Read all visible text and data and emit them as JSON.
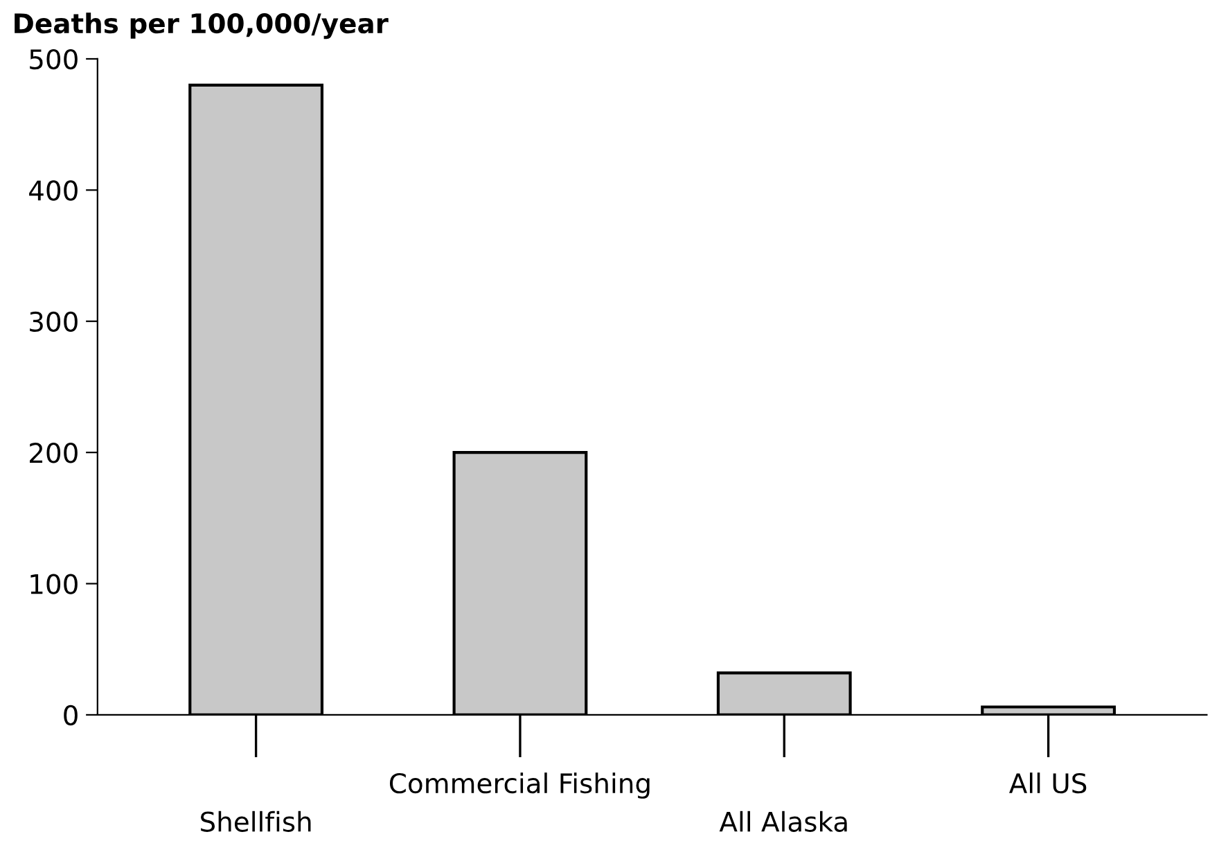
{
  "chart_data": {
    "type": "bar",
    "ylabel": "Deaths per 100,000/year",
    "categories": [
      "Shellfish",
      "Commercial Fishing",
      "All Alaska",
      "All US"
    ],
    "values": [
      480,
      200,
      32,
      6
    ],
    "color": "#c8c8c8",
    "ylim": [
      0,
      500
    ],
    "yticks": [
      0,
      100,
      200,
      300,
      400,
      500
    ],
    "grid": false,
    "legend": false
  }
}
